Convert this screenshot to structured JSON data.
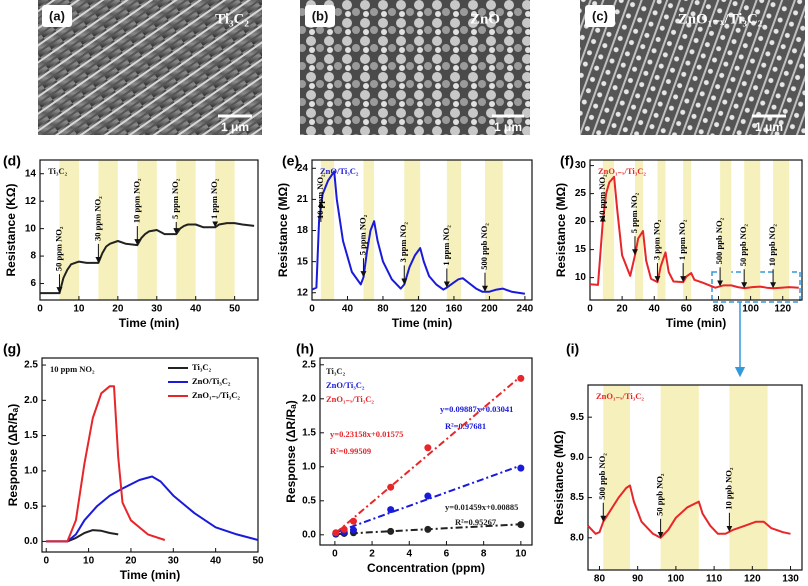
{
  "images": [
    {
      "label": "(a)",
      "caption": "Ti₃C₂",
      "scale": "1 μm"
    },
    {
      "label": "(b)",
      "caption": "ZnO",
      "scale": "1 μm"
    },
    {
      "label": "(c)",
      "caption": "ZnO₁₋ₓ/Ti₃C₂",
      "scale": "1 μm"
    }
  ],
  "chart_data": [
    {
      "type": "line",
      "label": "(d)",
      "title": "Ti₃C₂",
      "xlabel": "Time (min)",
      "ylabel": "Resistance (KΩ)",
      "xlim": [
        0,
        56
      ],
      "ylim": [
        4.8,
        15
      ],
      "xticks": [
        0,
        10,
        20,
        30,
        40,
        50
      ],
      "yticks": [
        6,
        8,
        10,
        12,
        14
      ],
      "bands": [
        [
          5,
          10
        ],
        [
          15,
          20
        ],
        [
          25,
          30
        ],
        [
          35,
          40
        ],
        [
          45,
          50
        ]
      ],
      "annotations": [
        "50 ppm NO₂",
        "30 ppm NO₂",
        "10 ppm NO₂",
        "5 ppm NO₂",
        "1 ppm NO₂"
      ],
      "x": [
        0,
        5,
        6,
        7,
        8,
        10,
        12,
        15,
        16,
        17,
        18,
        20,
        22,
        25,
        26,
        27,
        28,
        30,
        32,
        35,
        36,
        37,
        38,
        40,
        42,
        45,
        46,
        48,
        50,
        52,
        55
      ],
      "series": [
        {
          "name": "Ti₃C₂",
          "color": "#222222",
          "values": [
            5.3,
            5.3,
            6.4,
            7.0,
            7.4,
            7.6,
            7.5,
            7.5,
            8.2,
            8.7,
            8.9,
            9.1,
            8.9,
            8.8,
            9.3,
            9.6,
            9.8,
            9.9,
            9.6,
            9.6,
            10.0,
            10.2,
            10.3,
            10.3,
            10.1,
            10.1,
            10.3,
            10.4,
            10.4,
            10.3,
            10.2
          ]
        }
      ]
    },
    {
      "type": "line",
      "label": "(e)",
      "title": "ZnO/Ti₃C₂",
      "xlabel": "Time (min)",
      "ylabel": "Resistance (MΩ)",
      "xlim": [
        0,
        248
      ],
      "ylim": [
        11.3,
        24.8
      ],
      "xticks": [
        0,
        40,
        80,
        120,
        160,
        200,
        240
      ],
      "yticks": [
        12,
        15,
        18,
        21,
        24
      ],
      "bands": [
        [
          10,
          25
        ],
        [
          58,
          70
        ],
        [
          104,
          122
        ],
        [
          152,
          168
        ],
        [
          195,
          215
        ]
      ],
      "annotations": [
        "10 ppm NO₂",
        "5 ppm NO₂",
        "3 ppm NO₂",
        "1 ppm NO₂",
        "500 ppb NO₂"
      ],
      "x": [
        0,
        5,
        8,
        12,
        18,
        25,
        28,
        35,
        45,
        55,
        58,
        62,
        66,
        70,
        74,
        80,
        90,
        100,
        104,
        110,
        116,
        122,
        126,
        132,
        140,
        148,
        152,
        160,
        165,
        170,
        176,
        185,
        192,
        200,
        208,
        215,
        225,
        240
      ],
      "series": [
        {
          "name": "ZnO/Ti₃C₂",
          "color": "#1a1adb",
          "values": [
            12.3,
            12.5,
            19,
            21.5,
            22.8,
            23.7,
            21,
            17,
            14,
            12.8,
            13.5,
            16,
            18,
            18.9,
            17,
            15,
            13.3,
            12.4,
            12.8,
            14.5,
            15.6,
            16.3,
            15,
            13.6,
            12.8,
            12.3,
            12.5,
            13,
            13.3,
            13.4,
            13,
            12.4,
            12.1,
            12.1,
            12.3,
            12.4,
            12.1,
            11.9
          ]
        }
      ]
    },
    {
      "type": "line",
      "label": "(f)",
      "title": "ZnO₁₋ₓ/Ti₃C₂",
      "xlabel": "Time (min)",
      "ylabel": "Resistance (MΩ)",
      "xlim": [
        0,
        132
      ],
      "ylim": [
        6,
        31
      ],
      "xticks": [
        0,
        20,
        40,
        60,
        80,
        100,
        120
      ],
      "yticks": [
        10,
        15,
        20,
        25,
        30
      ],
      "bands": [
        [
          8,
          15
        ],
        [
          28,
          33
        ],
        [
          42,
          47
        ],
        [
          58,
          63
        ],
        [
          81,
          88
        ],
        [
          96,
          106
        ],
        [
          114,
          124
        ]
      ],
      "annotations": [
        "10 ppm NO₂",
        "5 ppm NO₂",
        "3 ppm NO₂",
        "1 ppm NO₂",
        "500 ppb NO₂",
        "50 ppb NO₂",
        "10 ppb NO₂"
      ],
      "x": [
        0,
        5,
        8,
        10,
        12,
        15,
        17,
        20,
        25,
        28,
        30,
        33,
        35,
        38,
        42,
        44,
        47,
        49,
        52,
        58,
        60,
        63,
        65,
        70,
        78,
        83,
        88,
        92,
        96,
        101,
        106,
        110,
        114,
        119,
        124,
        130
      ],
      "series": [
        {
          "name": "ZnO₁₋ₓ/Ti₃C₂",
          "color": "#e8262a",
          "values": [
            8.8,
            8.7,
            20,
            25,
            27,
            28,
            22,
            14,
            10.3,
            14,
            17,
            18.3,
            13,
            9.8,
            9.2,
            12,
            14.5,
            11,
            9.3,
            9.2,
            10.2,
            10.8,
            9.6,
            9.1,
            8.2,
            8.6,
            8.6,
            8.3,
            8.1,
            8.3,
            8.4,
            8.2,
            8.1,
            8.2,
            8.3,
            8.2
          ]
        }
      ]
    },
    {
      "type": "line",
      "label": "(g)",
      "title": "10 ppm NO₂",
      "xlabel": "Time (min)",
      "ylabel": "Response (ΔR/Rₐ)",
      "xlim": [
        -1,
        50
      ],
      "ylim": [
        -0.15,
        2.6
      ],
      "xticks": [
        0,
        10,
        20,
        30,
        40,
        50
      ],
      "yticks": [
        {
          "value": 0,
          "label": "0.0"
        },
        0.5,
        {
          "value": 1,
          "label": "1.0"
        },
        1.5,
        {
          "value": 2,
          "label": "2.0"
        },
        2.5
      ],
      "legend": "upper right",
      "series": [
        {
          "name": "Ti₃C₂",
          "color": "#222222",
          "x": [
            0,
            5,
            7,
            9,
            11,
            13,
            15,
            17
          ],
          "values": [
            0,
            0,
            0.05,
            0.12,
            0.16,
            0.15,
            0.12,
            0.1
          ]
        },
        {
          "name": "ZnO/Ti₃C₂",
          "color": "#1a1adb",
          "x": [
            0,
            5,
            7,
            9,
            12,
            15,
            18,
            22,
            25,
            27,
            30,
            35,
            40,
            45,
            50
          ],
          "values": [
            0,
            0,
            0.1,
            0.3,
            0.5,
            0.65,
            0.75,
            0.87,
            0.92,
            0.85,
            0.65,
            0.4,
            0.2,
            0.1,
            0.02
          ]
        },
        {
          "name": "ZnO₁₋ₓ/Ti₃C₂",
          "color": "#e8262a",
          "x": [
            0,
            5,
            7,
            9,
            11,
            13,
            15,
            16,
            17,
            18,
            20,
            24,
            28
          ],
          "values": [
            0,
            0,
            0.3,
            1.1,
            1.75,
            2.1,
            2.2,
            2.2,
            1.2,
            0.55,
            0.3,
            0.1,
            0.02
          ]
        }
      ]
    },
    {
      "type": "scatter",
      "label": "(h)",
      "xlabel": "Concentration (ppm)",
      "ylabel": "Response (ΔR/Rₐ)",
      "xlim": [
        -0.8,
        10.6
      ],
      "ylim": [
        -0.15,
        2.6
      ],
      "xticks": [
        0,
        2,
        4,
        6,
        8,
        10
      ],
      "yticks": [
        {
          "value": 0,
          "label": "0.0"
        },
        0.5,
        {
          "value": 1,
          "label": "1.0"
        },
        1.5,
        {
          "value": 2,
          "label": "2.0"
        },
        2.5
      ],
      "legend": "upper left",
      "x": [
        0.05,
        0.5,
        1,
        3,
        5,
        10
      ],
      "series": [
        {
          "name": "Ti₃C₂",
          "color": "#222222",
          "values": [
            0.01,
            0.02,
            0.03,
            0.05,
            0.08,
            0.15
          ],
          "fit": {
            "label": "y=0.01459x+0.00885",
            "r2": "R²=0.95267",
            "slope": 0.01459,
            "intercept": 0.00885
          }
        },
        {
          "name": "ZnO/Ti₃C₂",
          "color": "#1a1adb",
          "values": [
            0.02,
            0.04,
            0.07,
            0.37,
            0.57,
            0.98
          ],
          "fit": {
            "label": "y=0.09887x+0.03041",
            "r2": "R²=0.97681",
            "slope": 0.09887,
            "intercept": 0.03041
          }
        },
        {
          "name": "ZnO₁₋ₓ/Ti₃C₂",
          "color": "#e8262a",
          "values": [
            0.03,
            0.08,
            0.2,
            0.7,
            1.28,
            2.3
          ],
          "fit": {
            "label": "y=0.23158x+0.01575",
            "r2": "R²=0.99509",
            "slope": 0.23158,
            "intercept": 0.01575
          }
        }
      ]
    },
    {
      "type": "line",
      "label": "(i)",
      "title": "ZnO₁₋ₓ/Ti₃C₂",
      "xlabel": "Time (min)",
      "ylabel": "Resistance (MΩ)",
      "xlim": [
        77,
        133
      ],
      "ylim": [
        7.6,
        9.9
      ],
      "xticks": [
        80,
        90,
        100,
        110,
        120,
        130
      ],
      "yticks": [
        {
          "value": 8,
          "label": "8.0"
        },
        8.5,
        {
          "value": 9,
          "label": "9.0"
        },
        9.5
      ],
      "bands": [
        [
          81,
          88
        ],
        [
          96,
          106
        ],
        [
          114,
          124
        ]
      ],
      "annotations": [
        "500 ppb NO₂",
        "50 ppb NO₂",
        "10 ppb NO₂"
      ],
      "x": [
        77,
        79,
        80,
        81,
        83,
        85,
        87,
        88,
        89,
        91,
        94,
        96,
        98,
        100,
        103,
        106,
        107,
        109,
        111,
        113,
        115,
        118,
        121,
        123,
        125,
        128,
        130
      ],
      "series": [
        {
          "name": "ZnO₁₋ₓ/Ti₃C₂",
          "color": "#e8262a",
          "values": [
            8.15,
            8.05,
            8.07,
            8.2,
            8.35,
            8.5,
            8.62,
            8.65,
            8.45,
            8.2,
            8.05,
            8.0,
            8.1,
            8.25,
            8.38,
            8.45,
            8.3,
            8.15,
            8.05,
            8.05,
            8.1,
            8.15,
            8.2,
            8.2,
            8.12,
            8.07,
            8.05
          ]
        }
      ]
    }
  ]
}
